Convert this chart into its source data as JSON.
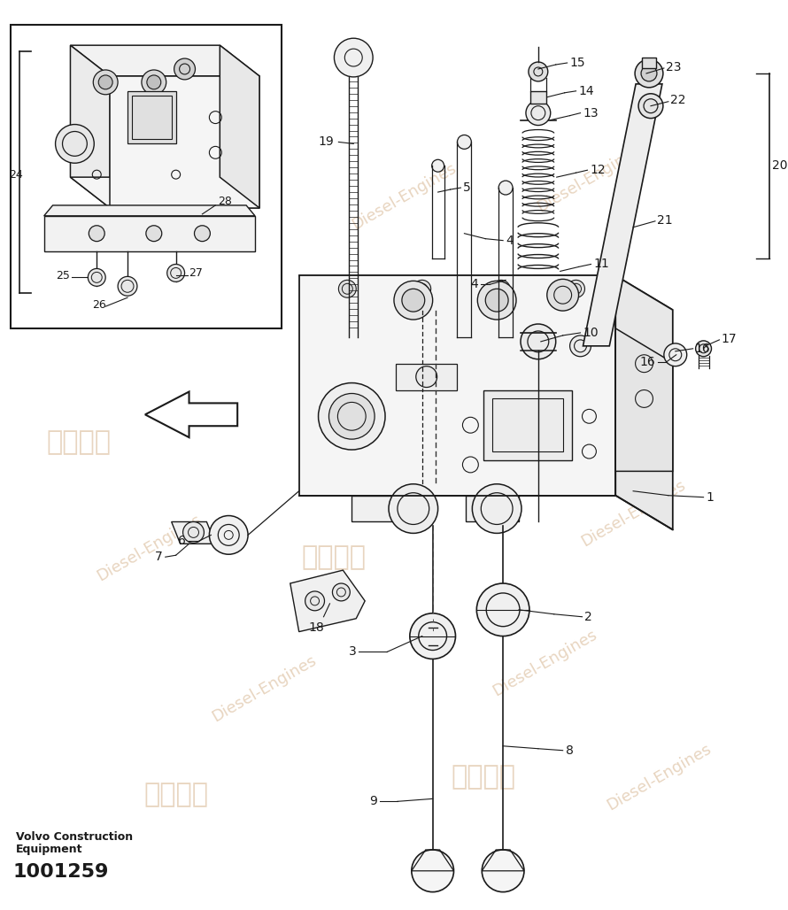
{
  "background_color": "#ffffff",
  "line_color": "#1a1a1a",
  "watermark_color": "#e8d5c0",
  "brand_text_1": "Volvo Construction",
  "brand_text_2": "Equipment",
  "part_number": "1001259",
  "brand_fontsize": 9,
  "part_fontsize": 16,
  "label_fontsize": 10
}
